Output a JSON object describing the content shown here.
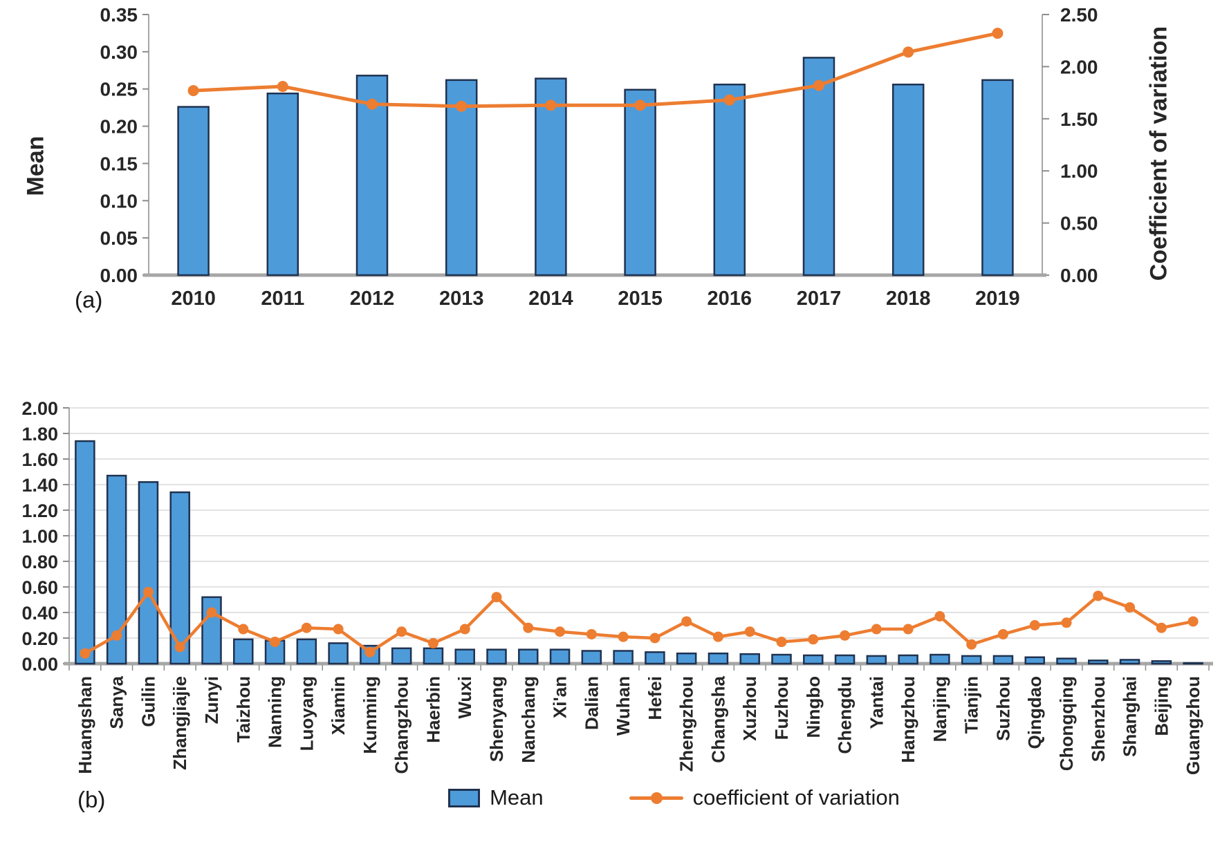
{
  "figure": {
    "panel_a_label": "(a)",
    "panel_b_label": "(b)"
  },
  "colors": {
    "bar_fill": "#4E9BDA",
    "bar_border": "#1F3250",
    "line": "#ED7D31",
    "gridline": "#D9D9D9",
    "axis_line": "#A6A6A6",
    "tick_mark": "#8C8C8C",
    "text": "#262626"
  },
  "legend": {
    "mean": "Mean",
    "cv": "coefficient of variation"
  },
  "chart_data": [
    {
      "id": "a",
      "type": "bar",
      "title": "",
      "ylabel_left": "Mean",
      "ylabel_right": "Coefficient of variation",
      "grid": false,
      "categories": [
        "2010",
        "2011",
        "2012",
        "2013",
        "2014",
        "2015",
        "2016",
        "2017",
        "2018",
        "2019"
      ],
      "series": [
        {
          "name": "Mean",
          "type": "bar",
          "axis": "left",
          "values": [
            0.226,
            0.244,
            0.268,
            0.262,
            0.264,
            0.249,
            0.256,
            0.292,
            0.256,
            0.262
          ]
        },
        {
          "name": "coefficient of variation",
          "type": "line",
          "axis": "right",
          "values": [
            1.77,
            1.81,
            1.64,
            1.62,
            1.63,
            1.63,
            1.68,
            1.82,
            2.14,
            2.32
          ]
        }
      ],
      "left_axis": {
        "min": 0,
        "max": 0.35,
        "ticks": [
          "0.00",
          "0.05",
          "0.10",
          "0.15",
          "0.20",
          "0.25",
          "0.30",
          "0.35"
        ]
      },
      "right_axis": {
        "min": 0,
        "max": 2.5,
        "ticks": [
          "0.00",
          "0.50",
          "1.00",
          "1.50",
          "2.00",
          "2.50"
        ]
      }
    },
    {
      "id": "b",
      "type": "bar",
      "title": "",
      "ylabel_left": "",
      "grid": true,
      "categories": [
        "Huangshan",
        "Sanya",
        "Guilin",
        "Zhangjiajie",
        "Zunyi",
        "Taizhou",
        "Nanning",
        "Luoyang",
        "Xiamin",
        "Kunming",
        "Changzhou",
        "Haerbin",
        "Wuxi",
        "Shenyang",
        "Nanchang",
        "Xi'an",
        "Dalian",
        "Wuhan",
        "Hefei",
        "Zhengzhou",
        "Changsha",
        "Xuzhou",
        "Fuzhou",
        "Ningbo",
        "Chengdu",
        "Yantai",
        "Hangzhou",
        "Nanjing",
        "Tianjin",
        "Suzhou",
        "Qingdao",
        "Chongqing",
        "Shenzhou",
        "Shanghai",
        "Beijing",
        "Guangzhou"
      ],
      "series": [
        {
          "name": "Mean",
          "type": "bar",
          "axis": "left",
          "values": [
            1.74,
            1.47,
            1.42,
            1.34,
            0.52,
            0.19,
            0.18,
            0.19,
            0.16,
            0.14,
            0.12,
            0.12,
            0.11,
            0.11,
            0.11,
            0.11,
            0.1,
            0.1,
            0.09,
            0.08,
            0.08,
            0.075,
            0.07,
            0.065,
            0.065,
            0.06,
            0.065,
            0.07,
            0.06,
            0.06,
            0.05,
            0.04,
            0.025,
            0.03,
            0.02,
            0.005
          ]
        },
        {
          "name": "coefficient of variation",
          "type": "line",
          "axis": "left",
          "values": [
            0.08,
            0.22,
            0.56,
            0.13,
            0.4,
            0.27,
            0.17,
            0.28,
            0.27,
            0.09,
            0.25,
            0.16,
            0.27,
            0.52,
            0.28,
            0.25,
            0.23,
            0.21,
            0.2,
            0.33,
            0.21,
            0.25,
            0.17,
            0.19,
            0.22,
            0.27,
            0.27,
            0.37,
            0.15,
            0.23,
            0.3,
            0.32,
            0.53,
            0.44,
            0.28,
            0.33
          ]
        }
      ],
      "left_axis": {
        "min": 0,
        "max": 2.0,
        "ticks": [
          "0.00",
          "0.20",
          "0.40",
          "0.60",
          "0.80",
          "1.00",
          "1.20",
          "1.40",
          "1.60",
          "1.80",
          "2.00"
        ]
      }
    }
  ]
}
